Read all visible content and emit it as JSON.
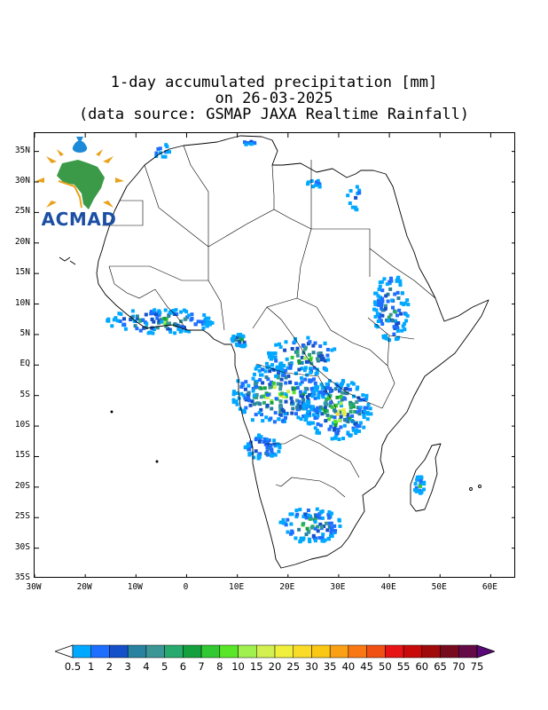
{
  "title": {
    "line1": "1-day accumulated precipitation [mm]",
    "line2": "on 26-03-2025",
    "line3": "(data source: GSMAP JAXA Realtime Rainfall)"
  },
  "logo": {
    "text": "ACMAD",
    "icon": "acmad-africa-sun-drop-icon"
  },
  "map": {
    "lon_range": [
      -30,
      65
    ],
    "lat_range": [
      -35,
      38
    ],
    "lat_labels": [
      "35N",
      "30N",
      "25N",
      "20N",
      "15N",
      "10N",
      "5N",
      "EQ",
      "5S",
      "10S",
      "15S",
      "20S",
      "25S",
      "30S",
      "35S"
    ],
    "lat_values": [
      35,
      30,
      25,
      20,
      15,
      10,
      5,
      0,
      -5,
      -10,
      -15,
      -20,
      -25,
      -30,
      -35
    ],
    "lon_labels": [
      "30W",
      "20W",
      "10W",
      "0",
      "10E",
      "20E",
      "30E",
      "40E",
      "50E",
      "60E"
    ],
    "lon_values": [
      -30,
      -20,
      -10,
      0,
      10,
      20,
      30,
      40,
      50,
      60
    ]
  },
  "colorbar": {
    "labels": [
      "0.5",
      "1",
      "2",
      "3",
      "4",
      "5",
      "6",
      "7",
      "8",
      "10",
      "15",
      "20",
      "25",
      "30",
      "35",
      "40",
      "45",
      "50",
      "55",
      "60",
      "65",
      "70",
      "75"
    ],
    "colors": [
      "#ffffff",
      "#00a8ff",
      "#1e6eff",
      "#1450c8",
      "#2882a0",
      "#3c9696",
      "#28aa6e",
      "#14a03c",
      "#32c832",
      "#5ae628",
      "#a0f050",
      "#d2f050",
      "#f0f03c",
      "#fadc28",
      "#fac814",
      "#faa014",
      "#fa7814",
      "#f05014",
      "#e61414",
      "#c80a0a",
      "#a00a0a",
      "#780a1e",
      "#640a46",
      "#5a0a78"
    ]
  }
}
